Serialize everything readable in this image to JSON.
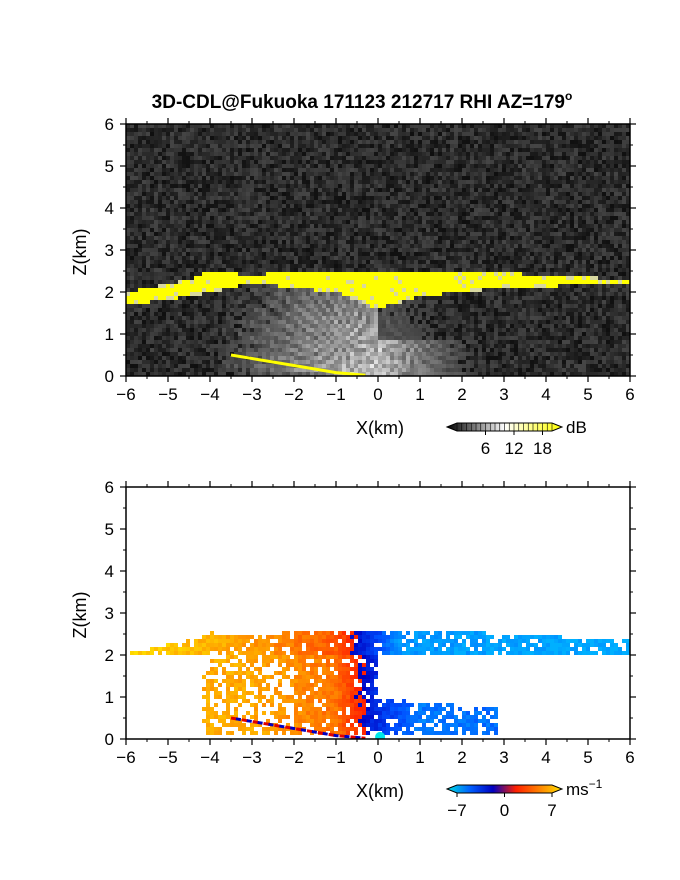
{
  "title": "3D-CDL@Fukuoka 171123 212717 RHI AZ=179",
  "title_superscript": "o",
  "chart_data": [
    {
      "type": "heatmap",
      "panel": "reflectivity",
      "xlabel": "X(km)",
      "ylabel": "Z(km)",
      "xlim": [
        -6,
        6
      ],
      "ylim": [
        0,
        6
      ],
      "xticks": [
        "−6",
        "−5",
        "−4",
        "−3",
        "−2",
        "−1",
        "0",
        "1",
        "2",
        "3",
        "4",
        "5",
        "6"
      ],
      "yticks": [
        "0",
        "1",
        "2",
        "3",
        "4",
        "5",
        "6"
      ],
      "colorbar": {
        "unit": "dB",
        "ticks": [
          "6",
          "12",
          "18"
        ],
        "range": [
          0,
          20
        ],
        "colors": [
          "#000000",
          "#ffffff",
          "#ffff00"
        ]
      },
      "features": {
        "cloud_layer_top_km": [
          [
            -5.9,
            2.0
          ],
          [
            -4.5,
            2.3
          ],
          [
            -4.0,
            2.5
          ],
          [
            -3.0,
            2.4
          ],
          [
            -2.0,
            2.5
          ],
          [
            0.0,
            2.5
          ],
          [
            2.0,
            2.5
          ],
          [
            4.0,
            2.4
          ],
          [
            5.9,
            2.3
          ]
        ],
        "cloud_layer_base_km": [
          [
            -5.9,
            1.7
          ],
          [
            -4.5,
            1.9
          ],
          [
            -4.0,
            2.0
          ],
          [
            -3.0,
            2.2
          ],
          [
            -1.0,
            2.0
          ],
          [
            0.0,
            1.6
          ],
          [
            1.0,
            1.9
          ],
          [
            3.0,
            2.1
          ],
          [
            5.9,
            2.2
          ]
        ],
        "ground_echo_km": [
          [
            -3.5,
            0.5
          ],
          [
            -2.0,
            0.25
          ],
          [
            -1.0,
            0.08
          ],
          [
            -0.3,
            0.02
          ]
        ]
      }
    },
    {
      "type": "heatmap",
      "panel": "doppler_velocity",
      "xlabel": "X(km)",
      "ylabel": "Z(km)",
      "xlim": [
        -6,
        6
      ],
      "ylim": [
        0,
        6
      ],
      "xticks": [
        "−6",
        "−5",
        "−4",
        "−3",
        "−2",
        "−1",
        "0",
        "1",
        "2",
        "3",
        "4",
        "5",
        "6"
      ],
      "yticks": [
        "0",
        "1",
        "2",
        "3",
        "4",
        "5",
        "6"
      ],
      "colorbar": {
        "unit": "ms",
        "unit_superscript": "−1",
        "ticks": [
          "−7",
          "0",
          "7"
        ],
        "range": [
          -7,
          7
        ],
        "colors": [
          "#00e0e0",
          "#0060ff",
          "#0000c0",
          "#ff2000",
          "#ff8000",
          "#ffe000"
        ]
      },
      "features": {
        "layer_velocity_ms": [
          [
            -5.5,
            6.5
          ],
          [
            -3.0,
            4.5
          ],
          [
            -1.0,
            2.0
          ],
          [
            -0.2,
            -2.0
          ],
          [
            0.5,
            -6.0
          ],
          [
            3.0,
            -6.5
          ],
          [
            5.9,
            -7.0
          ]
        ],
        "lower_echo_velocity_ms": [
          [
            -3.0,
            5.0
          ],
          [
            -1.0,
            3.0
          ],
          [
            0.0,
            -2.0
          ],
          [
            1.0,
            -5.0
          ],
          [
            3.0,
            -4.5
          ]
        ]
      }
    }
  ]
}
